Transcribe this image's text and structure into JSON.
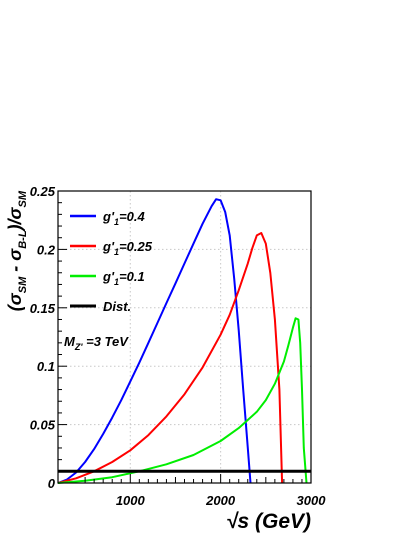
{
  "chart_data": {
    "type": "line",
    "xlabel": "√s (GeV)",
    "ylabel_parts": [
      "(σ",
      "SM",
      " - σ",
      "B-L",
      ")/σ",
      "SM"
    ],
    "xlim": [
      200,
      3000
    ],
    "ylim": [
      0,
      0.25
    ],
    "x_ticks": [
      1000,
      2000,
      3000
    ],
    "x_tick_labels": [
      "1000",
      "2000",
      "3000"
    ],
    "y_ticks": [
      0,
      0.05,
      0.1,
      0.15,
      0.2,
      0.25
    ],
    "y_tick_labels": [
      "0",
      "0.05",
      "0.1",
      "0.15",
      "0.2",
      "0.25"
    ],
    "grid": true,
    "legend_position": "top-left",
    "annotation": {
      "main": "M",
      "sub": "Z'",
      "rest": " =3 TeV"
    },
    "series": [
      {
        "name": "g'1=0.4",
        "label_main": "g'",
        "label_sub": "1",
        "label_rest": "=0.4",
        "color": "#0000ff",
        "x": [
          200,
          300,
          400,
          500,
          600,
          700,
          800,
          900,
          1000,
          1100,
          1200,
          1300,
          1400,
          1500,
          1600,
          1700,
          1800,
          1900,
          1950,
          2000,
          2050,
          2100,
          2150,
          2200,
          2250,
          2300,
          2330
        ],
        "y": [
          0.0,
          0.003,
          0.009,
          0.018,
          0.029,
          0.042,
          0.056,
          0.071,
          0.087,
          0.103,
          0.12,
          0.137,
          0.154,
          0.171,
          0.188,
          0.205,
          0.222,
          0.237,
          0.243,
          0.242,
          0.232,
          0.212,
          0.175,
          0.131,
          0.08,
          0.03,
          0.0
        ]
      },
      {
        "name": "g'1=0.25",
        "label_main": "g'",
        "label_sub": "1",
        "label_rest": "=0.25",
        "color": "#ff0000",
        "x": [
          200,
          400,
          600,
          800,
          1000,
          1200,
          1400,
          1600,
          1800,
          2000,
          2100,
          2200,
          2300,
          2350,
          2400,
          2450,
          2500,
          2550,
          2600,
          2650,
          2680
        ],
        "y": [
          0.0,
          0.004,
          0.01,
          0.018,
          0.028,
          0.041,
          0.057,
          0.076,
          0.099,
          0.127,
          0.144,
          0.165,
          0.188,
          0.201,
          0.212,
          0.214,
          0.205,
          0.18,
          0.14,
          0.08,
          0.0
        ]
      },
      {
        "name": "g'1=0.1",
        "label_main": "g'",
        "label_sub": "1",
        "label_rest": "=0.1",
        "color": "#00ee00",
        "x": [
          200,
          500,
          800,
          1100,
          1400,
          1700,
          2000,
          2200,
          2400,
          2500,
          2600,
          2700,
          2750,
          2800,
          2830,
          2860,
          2880,
          2900,
          2920,
          2950
        ],
        "y": [
          0.0,
          0.002,
          0.005,
          0.01,
          0.016,
          0.024,
          0.036,
          0.047,
          0.061,
          0.071,
          0.085,
          0.104,
          0.118,
          0.133,
          0.141,
          0.14,
          0.12,
          0.08,
          0.03,
          0.0
        ]
      },
      {
        "name": "Dist.",
        "label_main": "Dist.",
        "label_sub": "",
        "label_rest": "",
        "color": "#000000",
        "x": [
          200,
          3000
        ],
        "y": [
          0.01,
          0.01
        ]
      }
    ]
  }
}
